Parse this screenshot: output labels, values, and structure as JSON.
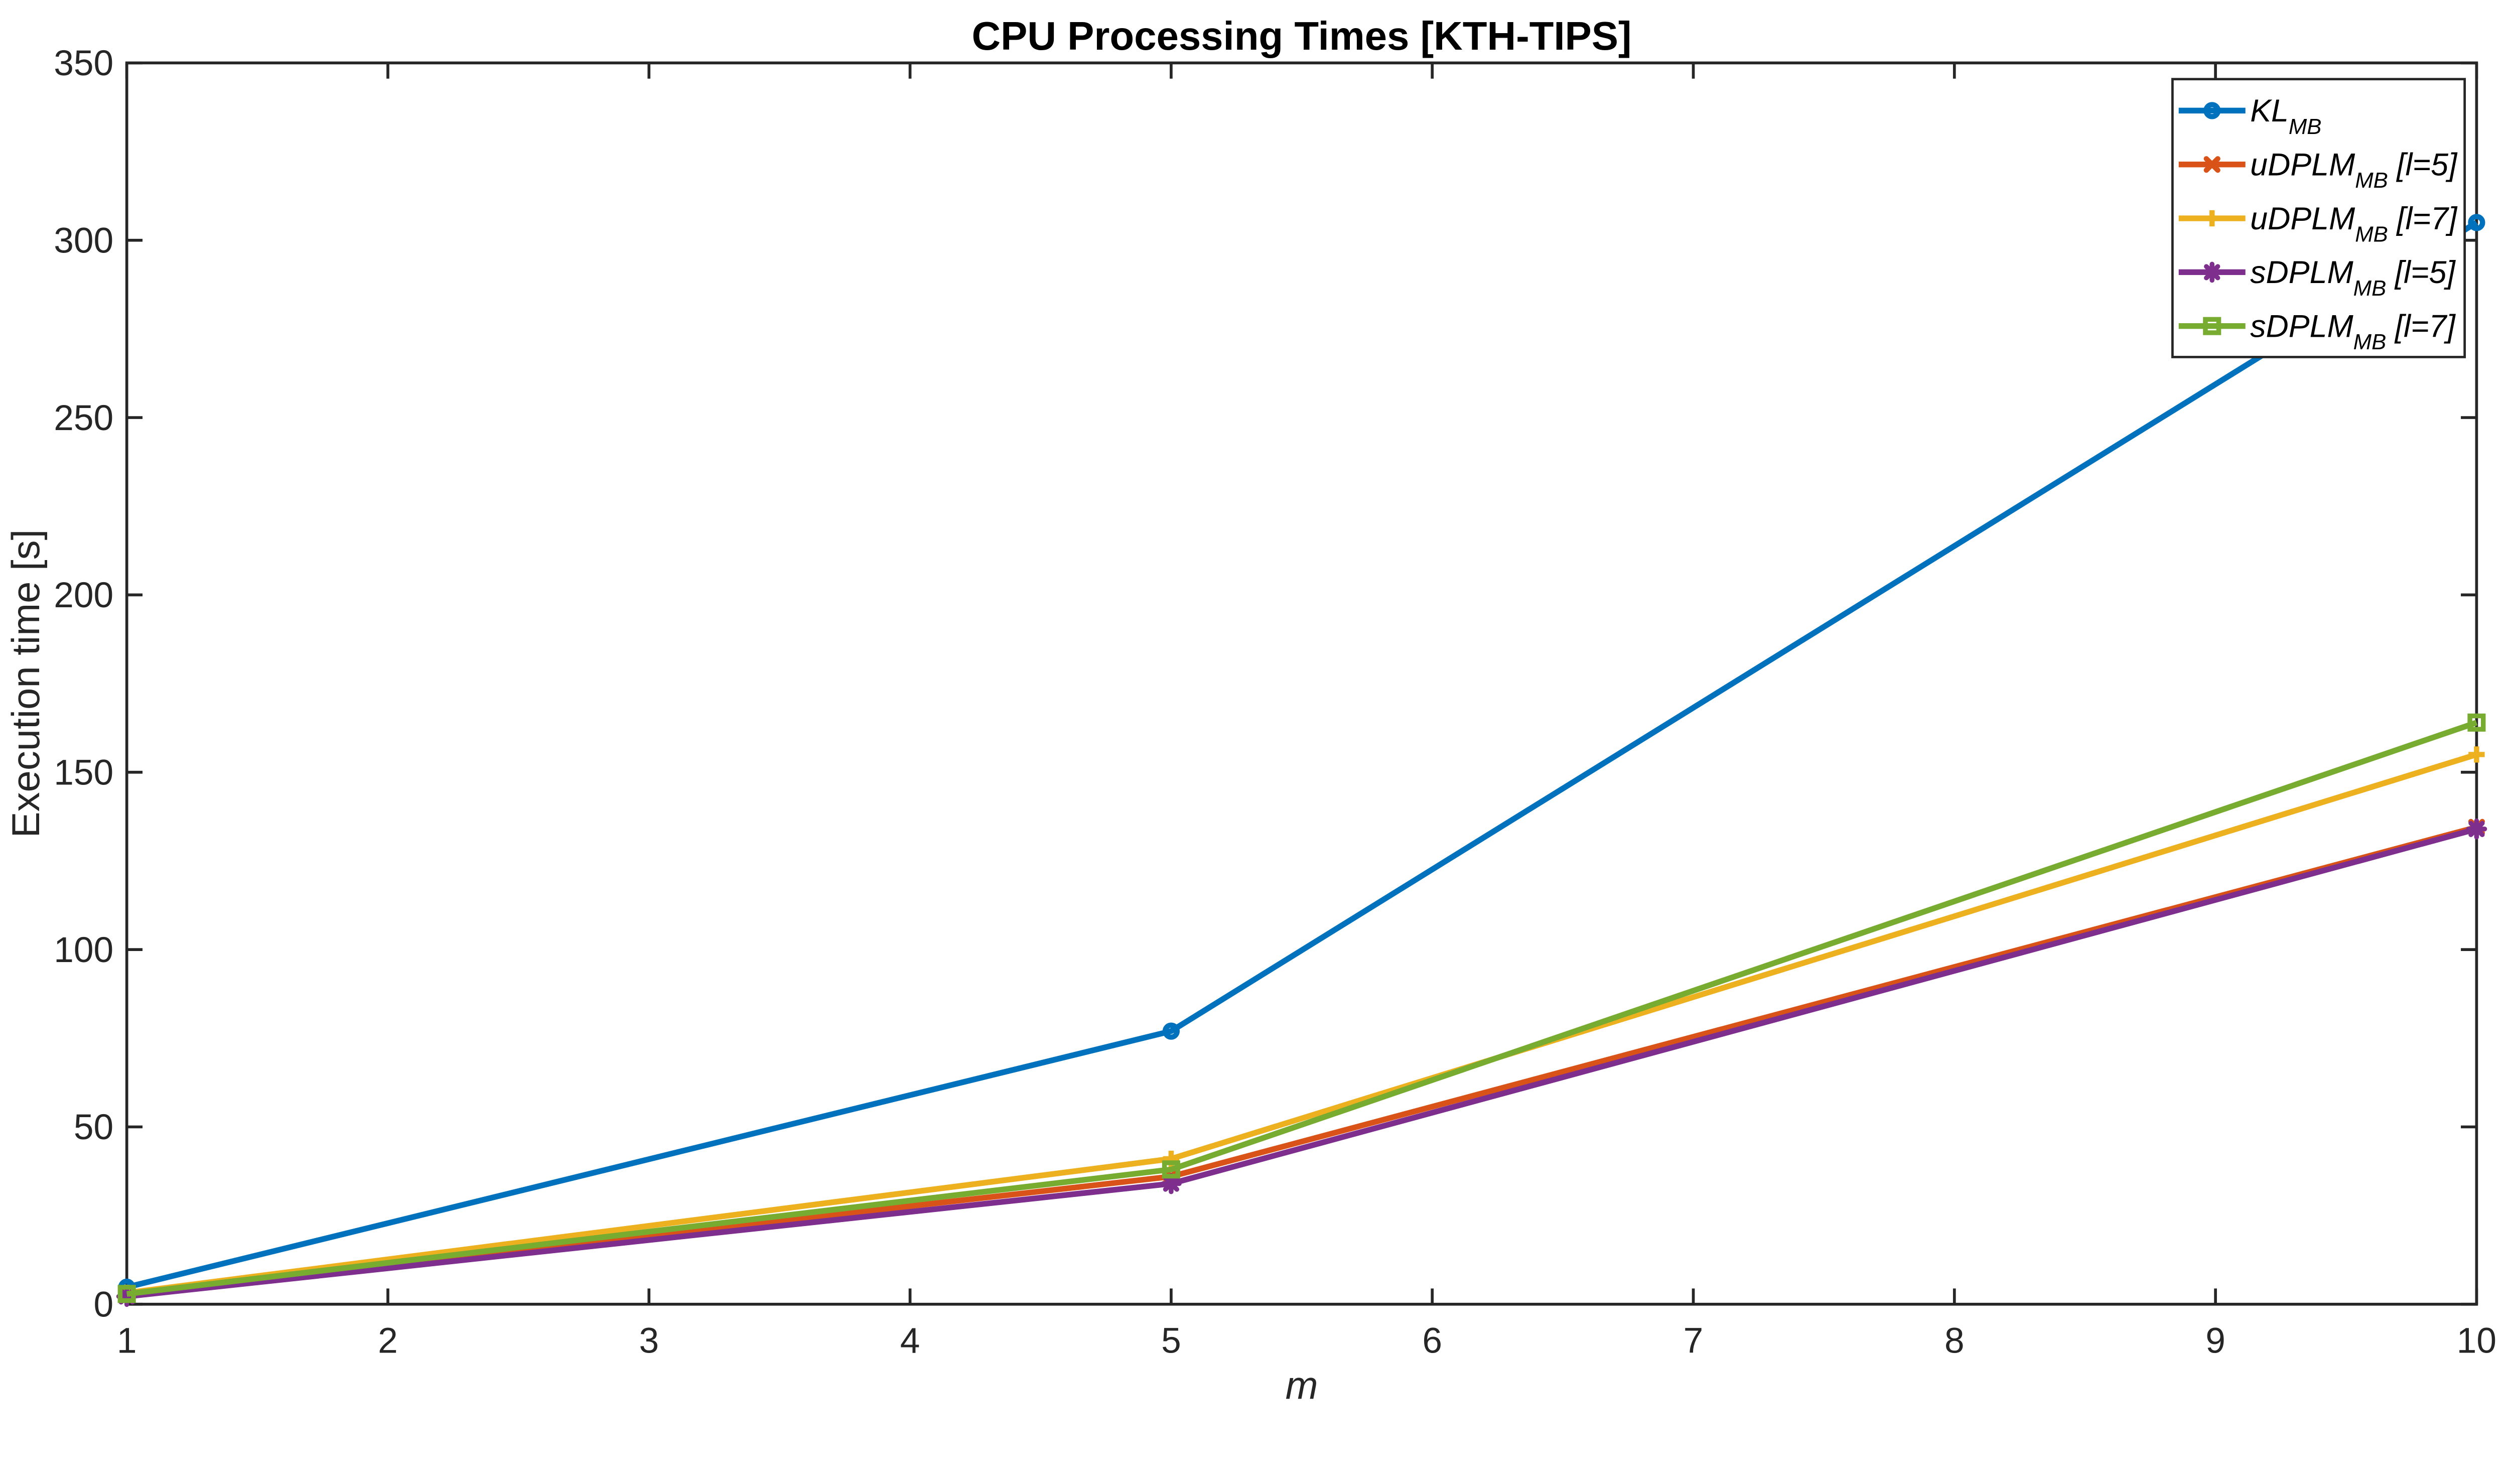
{
  "chart_data": {
    "type": "line",
    "title": "CPU Processing Times [KTH-TIPS]",
    "xlabel": "m",
    "ylabel": "Execution time [s]",
    "xlim": [
      1,
      10
    ],
    "ylim": [
      0,
      350
    ],
    "xticks": [
      1,
      2,
      3,
      4,
      5,
      6,
      7,
      8,
      9,
      10
    ],
    "yticks": [
      0,
      50,
      100,
      150,
      200,
      250,
      300,
      350
    ],
    "grid": false,
    "legend_position": "top-right",
    "background": "#ffffff",
    "axis_color": "#262626",
    "text_color": "#000000",
    "x": [
      1,
      5,
      10
    ],
    "series": [
      {
        "label": "KL_MB",
        "label_parts": {
          "main": "KL",
          "sub": "MB",
          "suffix": ""
        },
        "color": "#0072BD",
        "marker": "circle",
        "values": [
          4.8,
          77,
          305
        ]
      },
      {
        "label": "uDPLM_MB [l=5]",
        "label_parts": {
          "main": "uDPLM",
          "sub": "MB",
          "suffix": " [l=5]"
        },
        "color": "#D95319",
        "marker": "x",
        "values": [
          2.6,
          36,
          134.5
        ]
      },
      {
        "label": "uDPLM_MB [l=7]",
        "label_parts": {
          "main": "uDPLM",
          "sub": "MB",
          "suffix": " [l=7]"
        },
        "color": "#EDB120",
        "marker": "plus",
        "values": [
          3.2,
          41,
          155
        ]
      },
      {
        "label": "sDPLM_MB [l=5]",
        "label_parts": {
          "main": "sDPLM",
          "sub": "MB",
          "suffix": " [l=5]"
        },
        "color": "#7E2F8E",
        "marker": "asterisk",
        "values": [
          2.2,
          34,
          134
        ]
      },
      {
        "label": "sDPLM_MB [l=7]",
        "label_parts": {
          "main": "sDPLM",
          "sub": "MB",
          "suffix": " [l=7]"
        },
        "color": "#77AC30",
        "marker": "square",
        "values": [
          2.9,
          38,
          164
        ]
      }
    ]
  }
}
